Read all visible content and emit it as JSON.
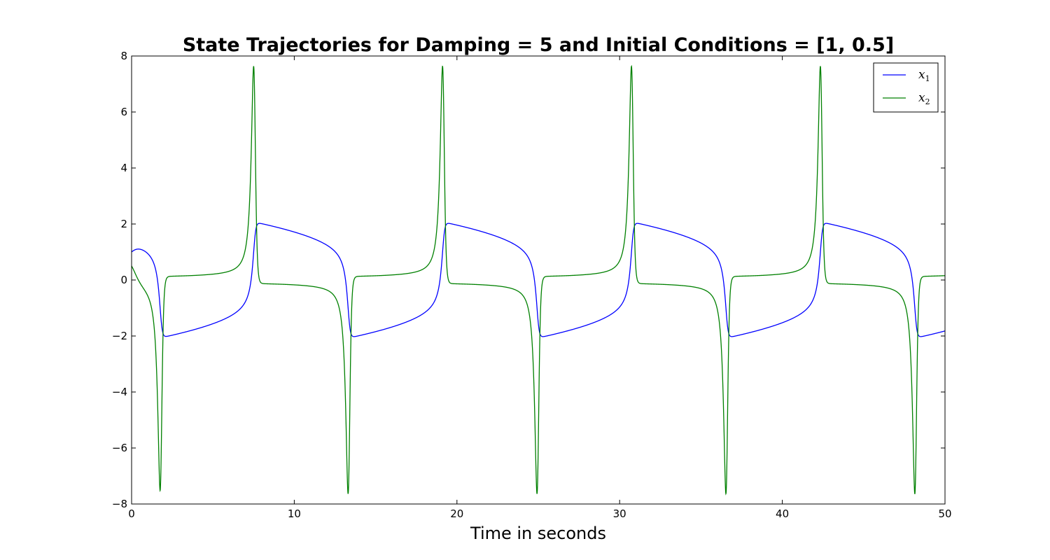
{
  "chart_data": {
    "type": "line",
    "title": "State Trajectories for Damping = 5 and Initial Conditions = [1, 0.5]",
    "xlabel": "Time in seconds",
    "ylabel": "",
    "xlim": [
      0,
      50
    ],
    "ylim": [
      -8,
      8
    ],
    "xticks": [
      0,
      10,
      20,
      30,
      40,
      50
    ],
    "yticks": [
      -8,
      -6,
      -4,
      -2,
      0,
      2,
      4,
      6,
      8
    ],
    "xtick_labels": [
      "0",
      "10",
      "20",
      "30",
      "40",
      "50"
    ],
    "ytick_labels": [
      "−8",
      "−6",
      "−4",
      "−2",
      "0",
      "2",
      "4",
      "6",
      "8"
    ],
    "grid": false,
    "legend_position": "top-right",
    "damping": 5,
    "initial_conditions": [
      1,
      0.5
    ],
    "t_end": 50,
    "series": [
      {
        "name": "x",
        "subscript": "1",
        "color": "#0000ff",
        "state_index": 0
      },
      {
        "name": "x",
        "subscript": "2",
        "color": "#008000",
        "state_index": 1
      }
    ]
  }
}
